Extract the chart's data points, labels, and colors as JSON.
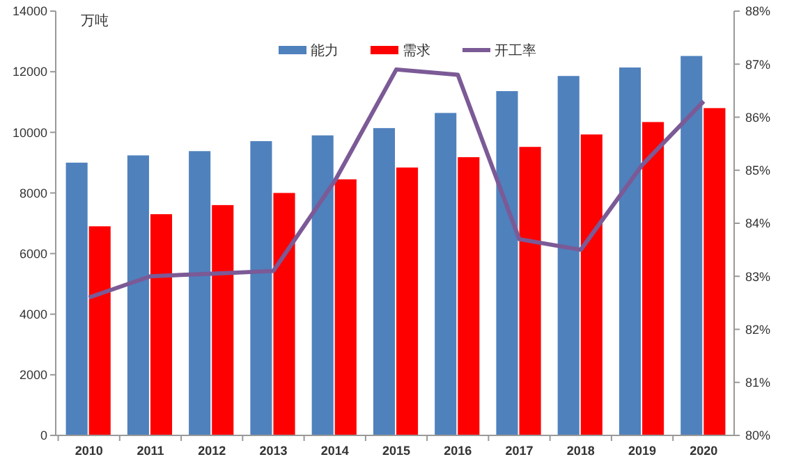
{
  "chart_data": {
    "type": "bar",
    "categories": [
      "2010",
      "2011",
      "2012",
      "2013",
      "2014",
      "2015",
      "2016",
      "2017",
      "2018",
      "2019",
      "2020"
    ],
    "series": [
      {
        "name": "能力",
        "color": "#4f81bd",
        "values": [
          9000,
          9240,
          9380,
          9710,
          9900,
          10140,
          10640,
          11360,
          11860,
          12140,
          12520
        ]
      },
      {
        "name": "需求",
        "color": "#ff0000",
        "values": [
          6900,
          7300,
          7600,
          8000,
          8450,
          8840,
          9180,
          9520,
          9930,
          10340,
          10800
        ]
      },
      {
        "name": "开工率",
        "type": "line",
        "axis": "y2",
        "color": "#7b5a96",
        "values": [
          82.6,
          83.0,
          83.05,
          83.1,
          84.8,
          86.9,
          86.8,
          83.7,
          83.5,
          85.1,
          86.3
        ]
      }
    ],
    "ylim": [
      0,
      14000
    ],
    "yticks": [
      0,
      2000,
      4000,
      6000,
      8000,
      10000,
      12000,
      14000
    ],
    "y2lim": [
      80,
      88
    ],
    "y2ticks": [
      {
        "value": 80,
        "label": "80%"
      },
      {
        "value": 81,
        "label": "81%"
      },
      {
        "value": 82,
        "label": "82%"
      },
      {
        "value": 83,
        "label": "83%"
      },
      {
        "value": 84,
        "label": "84%"
      },
      {
        "value": 85,
        "label": "85%"
      },
      {
        "value": 86,
        "label": "86%"
      },
      {
        "value": 87,
        "label": "87%"
      },
      {
        "value": 88,
        "label": "88%"
      }
    ],
    "annotations": [
      "万吨"
    ],
    "legend": "top",
    "grid": false,
    "marker": "none"
  }
}
